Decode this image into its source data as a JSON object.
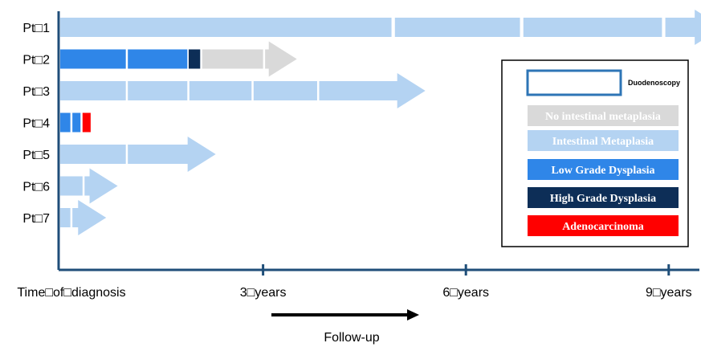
{
  "patients": [
    {
      "label": "Pt□1",
      "segments": [
        {
          "start": 0.0,
          "end": 4.9,
          "state": "intestinal-metaplasia"
        },
        {
          "start": 4.95,
          "end": 6.8,
          "state": "intestinal-metaplasia"
        },
        {
          "start": 6.85,
          "end": 8.9,
          "state": "intestinal-metaplasia"
        },
        {
          "start": 8.95,
          "end": 9.8,
          "state": "intestinal-metaplasia",
          "arrow": true
        }
      ]
    },
    {
      "label": "Pt□2",
      "segments": [
        {
          "start": 0.0,
          "end": 0.97,
          "state": "low-grade-dysplasia"
        },
        {
          "start": 1.0,
          "end": 1.88,
          "state": "low-grade-dysplasia"
        },
        {
          "start": 1.9,
          "end": 2.07,
          "state": "high-grade-dysplasia"
        },
        {
          "start": 2.1,
          "end": 3.0,
          "state": "no-intestinal-metaplasia"
        },
        {
          "start": 3.03,
          "end": 3.5,
          "state": "no-intestinal-metaplasia",
          "arrow": true
        }
      ]
    },
    {
      "label": "Pt□3",
      "segments": [
        {
          "start": 0.0,
          "end": 0.97,
          "state": "intestinal-metaplasia"
        },
        {
          "start": 1.0,
          "end": 1.88,
          "state": "intestinal-metaplasia"
        },
        {
          "start": 1.91,
          "end": 2.83,
          "state": "intestinal-metaplasia"
        },
        {
          "start": 2.86,
          "end": 3.8,
          "state": "intestinal-metaplasia"
        },
        {
          "start": 3.83,
          "end": 5.4,
          "state": "intestinal-metaplasia",
          "arrow": true
        }
      ]
    },
    {
      "label": "Pt□4",
      "segments": [
        {
          "start": 0.0,
          "end": 0.15,
          "state": "low-grade-dysplasia"
        },
        {
          "start": 0.18,
          "end": 0.3,
          "state": "low-grade-dysplasia"
        },
        {
          "start": 0.33,
          "end": 0.45,
          "state": "adenocarcinoma"
        }
      ]
    },
    {
      "label": "Pt□5",
      "segments": [
        {
          "start": 0.0,
          "end": 0.97,
          "state": "intestinal-metaplasia"
        },
        {
          "start": 1.0,
          "end": 2.3,
          "state": "intestinal-metaplasia",
          "arrow": true
        }
      ]
    },
    {
      "label": "Pt□6",
      "segments": [
        {
          "start": 0.0,
          "end": 0.33,
          "state": "intestinal-metaplasia"
        },
        {
          "start": 0.36,
          "end": 0.85,
          "state": "intestinal-metaplasia",
          "arrow": true
        }
      ]
    },
    {
      "label": "Pt□7",
      "segments": [
        {
          "start": 0.0,
          "end": 0.15,
          "state": "intestinal-metaplasia"
        },
        {
          "start": 0.18,
          "end": 0.68,
          "state": "intestinal-metaplasia",
          "arrow": true
        }
      ]
    }
  ],
  "axis": {
    "ticks": [
      {
        "value": 0,
        "label": "Time□of□diagnosis"
      },
      {
        "value": 3,
        "label": "3□years"
      },
      {
        "value": 6,
        "label": "6□years"
      },
      {
        "value": 9,
        "label": "9□years"
      }
    ],
    "follow_up_label": "Follow-up"
  },
  "legend": {
    "items": [
      {
        "key": "duodenoscopy",
        "label": "Duodenoscopy",
        "color": "#2e75b6",
        "style": "outline"
      },
      {
        "key": "no-intestinal-metaplasia",
        "label": "No intestinal metaplasia",
        "color": "#d9d9d9",
        "text_color": "#ffffff"
      },
      {
        "key": "intestinal-metaplasia",
        "label": "Intestinal Metaplasia",
        "color": "#b4d3f2",
        "text_color": "#ffffff"
      },
      {
        "key": "low-grade-dysplasia",
        "label": "Low Grade Dysplasia",
        "color": "#2f86e8",
        "text_color": "#ffffff"
      },
      {
        "key": "high-grade-dysplasia",
        "label": "High Grade Dysplasia",
        "color": "#0d2e57",
        "text_color": "#ffffff"
      },
      {
        "key": "adenocarcinoma",
        "label": "Adenocarcinoma",
        "color": "#ff0000",
        "text_color": "#ffffff"
      }
    ]
  },
  "colors": {
    "axis": "#1f4e79",
    "follow_up_arrow": "#000000"
  }
}
